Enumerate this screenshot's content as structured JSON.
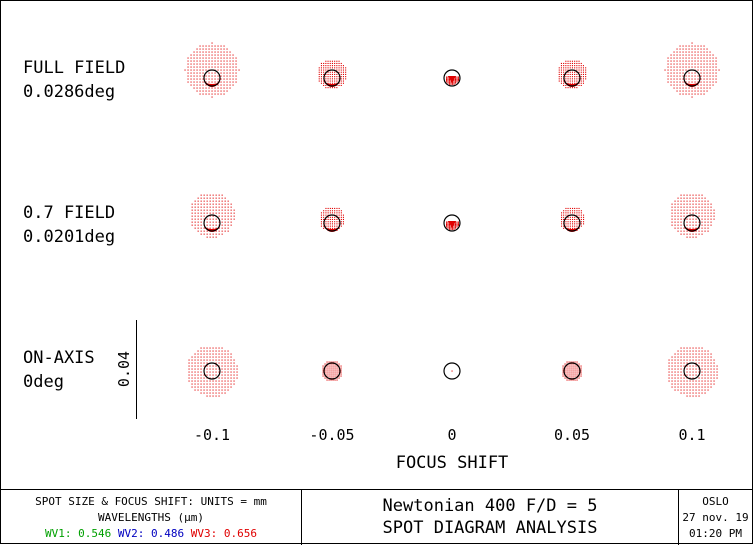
{
  "rows": [
    {
      "name": "FULL FIELD",
      "angle": "0.0286deg"
    },
    {
      "name": "0.7 FIELD",
      "angle": "0.0201deg"
    },
    {
      "name": "ON-AXIS",
      "angle": "0deg"
    }
  ],
  "focus_shifts": [
    "-0.1",
    "-0.05",
    "0",
    "0.05",
    "0.1"
  ],
  "x_axis_label": "FOCUS SHIFT",
  "scale_label": "0.04",
  "footer": {
    "units_line": "SPOT SIZE & FOCUS SHIFT: UNITS = mm",
    "wavelengths_title": "WAVELENGTHS (μm)",
    "wavelengths": [
      {
        "label": "WV1: 0.546",
        "color": "#00a000"
      },
      {
        "label": "WV2: 0.486",
        "color": "#0000c0"
      },
      {
        "label": "WV3: 0.656",
        "color": "#e00000"
      }
    ],
    "title_line1": "Newtonian 400 F/D = 5",
    "title_line2": "SPOT DIAGRAM ANALYSIS",
    "program": "OSLO",
    "date": "27 nov. 19",
    "time": "01:20 PM"
  },
  "colors": {
    "spot": "#e00000",
    "airy_disk": "#000000",
    "frame": "#000000"
  }
}
